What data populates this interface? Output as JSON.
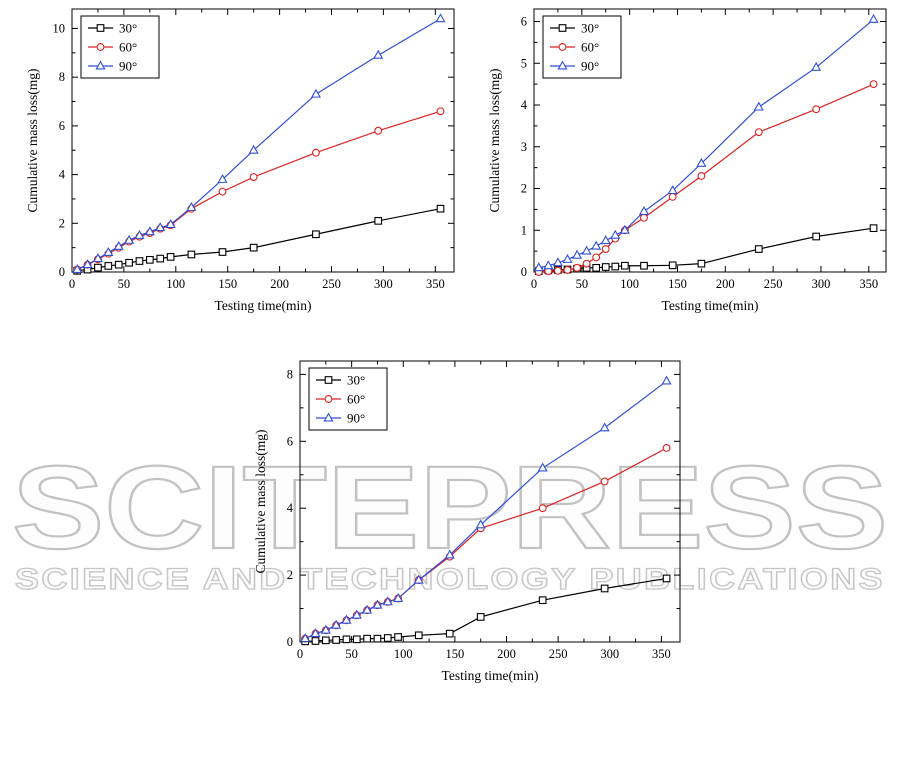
{
  "watermark": {
    "brand": "SCITEPRESS",
    "tagline": "SCIENCE AND TECHNOLOGY PUBLICATIONS",
    "color": "#c2c2c2"
  },
  "colors": {
    "deg30": "#000000",
    "deg60": "#dd2222",
    "deg90": "#2e4fd8"
  },
  "chart_data": [
    {
      "type": "line",
      "title": "",
      "xlabel": "Testing time(min)",
      "ylabel": "Cumulative mass loss(mg)",
      "xlim": [
        0,
        368
      ],
      "ylim": [
        0,
        10.8
      ],
      "xticks": [
        0,
        50,
        100,
        150,
        200,
        250,
        300,
        350
      ],
      "yticks": [
        0,
        2,
        4,
        6,
        8,
        10
      ],
      "grid": false,
      "legend_position": "top-left",
      "x": [
        5,
        15,
        25,
        35,
        45,
        55,
        65,
        75,
        85,
        95,
        115,
        145,
        175,
        235,
        295,
        355
      ],
      "series": [
        {
          "name": "30°",
          "marker": "square",
          "color": "#000000",
          "values": [
            0.05,
            0.1,
            0.18,
            0.25,
            0.3,
            0.38,
            0.45,
            0.5,
            0.55,
            0.62,
            0.72,
            0.82,
            1.0,
            1.55,
            2.1,
            2.6
          ]
        },
        {
          "name": "60°",
          "marker": "circle",
          "color": "#dd2222",
          "values": [
            0.1,
            0.3,
            0.52,
            0.75,
            1.0,
            1.25,
            1.45,
            1.6,
            1.78,
            1.92,
            2.6,
            3.3,
            3.9,
            4.9,
            5.8,
            6.6
          ]
        },
        {
          "name": "90°",
          "marker": "triangle",
          "color": "#2e4fd8",
          "values": [
            0.1,
            0.3,
            0.55,
            0.8,
            1.05,
            1.3,
            1.5,
            1.65,
            1.82,
            1.95,
            2.65,
            3.8,
            5.0,
            7.3,
            8.9,
            10.4
          ]
        }
      ]
    },
    {
      "type": "line",
      "title": "",
      "xlabel": "Testing time(min)",
      "ylabel": "Cumulative mass loss(mg)",
      "xlim": [
        0,
        368
      ],
      "ylim": [
        0,
        6.3
      ],
      "xticks": [
        0,
        50,
        100,
        150,
        200,
        250,
        300,
        350
      ],
      "yticks": [
        0,
        1,
        2,
        3,
        4,
        5,
        6
      ],
      "grid": false,
      "legend_position": "top-left",
      "x": [
        5,
        15,
        25,
        35,
        45,
        55,
        65,
        75,
        85,
        95,
        115,
        145,
        175,
        235,
        295,
        355
      ],
      "series": [
        {
          "name": "30°",
          "marker": "square",
          "color": "#000000",
          "values": [
            0.02,
            0.04,
            0.05,
            0.06,
            0.08,
            0.1,
            0.1,
            0.12,
            0.13,
            0.15,
            0.15,
            0.16,
            0.2,
            0.55,
            0.85,
            1.05
          ]
        },
        {
          "name": "60°",
          "marker": "circle",
          "color": "#dd2222",
          "values": [
            0.0,
            0.02,
            0.03,
            0.05,
            0.1,
            0.2,
            0.35,
            0.55,
            0.8,
            1.0,
            1.3,
            1.8,
            2.3,
            3.35,
            3.9,
            4.5
          ]
        },
        {
          "name": "90°",
          "marker": "triangle",
          "color": "#2e4fd8",
          "values": [
            0.1,
            0.15,
            0.22,
            0.3,
            0.4,
            0.5,
            0.62,
            0.75,
            0.88,
            1.0,
            1.45,
            1.95,
            2.6,
            3.95,
            4.9,
            6.05
          ]
        }
      ]
    },
    {
      "type": "line",
      "title": "",
      "xlabel": "Testing time(min)",
      "ylabel": "Cumulative mass loss(mg)",
      "xlim": [
        0,
        368
      ],
      "ylim": [
        0,
        8.4
      ],
      "xticks": [
        0,
        50,
        100,
        150,
        200,
        250,
        300,
        350
      ],
      "yticks": [
        0,
        2,
        4,
        6,
        8
      ],
      "grid": false,
      "legend_position": "top-left",
      "x": [
        5,
        15,
        25,
        35,
        45,
        55,
        65,
        75,
        85,
        95,
        115,
        145,
        175,
        235,
        295,
        355
      ],
      "series": [
        {
          "name": "30°",
          "marker": "square",
          "color": "#000000",
          "values": [
            0.02,
            0.03,
            0.05,
            0.06,
            0.08,
            0.08,
            0.1,
            0.1,
            0.12,
            0.15,
            0.2,
            0.25,
            0.75,
            1.25,
            1.6,
            1.9
          ]
        },
        {
          "name": "60°",
          "marker": "circle",
          "color": "#dd2222",
          "values": [
            0.1,
            0.25,
            0.35,
            0.5,
            0.65,
            0.8,
            0.95,
            1.1,
            1.2,
            1.3,
            1.85,
            2.55,
            3.4,
            4.0,
            4.8,
            5.8
          ]
        },
        {
          "name": "90°",
          "marker": "triangle",
          "color": "#2e4fd8",
          "values": [
            0.1,
            0.25,
            0.35,
            0.5,
            0.65,
            0.8,
            0.95,
            1.1,
            1.2,
            1.3,
            1.85,
            2.6,
            3.5,
            5.2,
            6.4,
            7.8
          ]
        }
      ]
    }
  ]
}
